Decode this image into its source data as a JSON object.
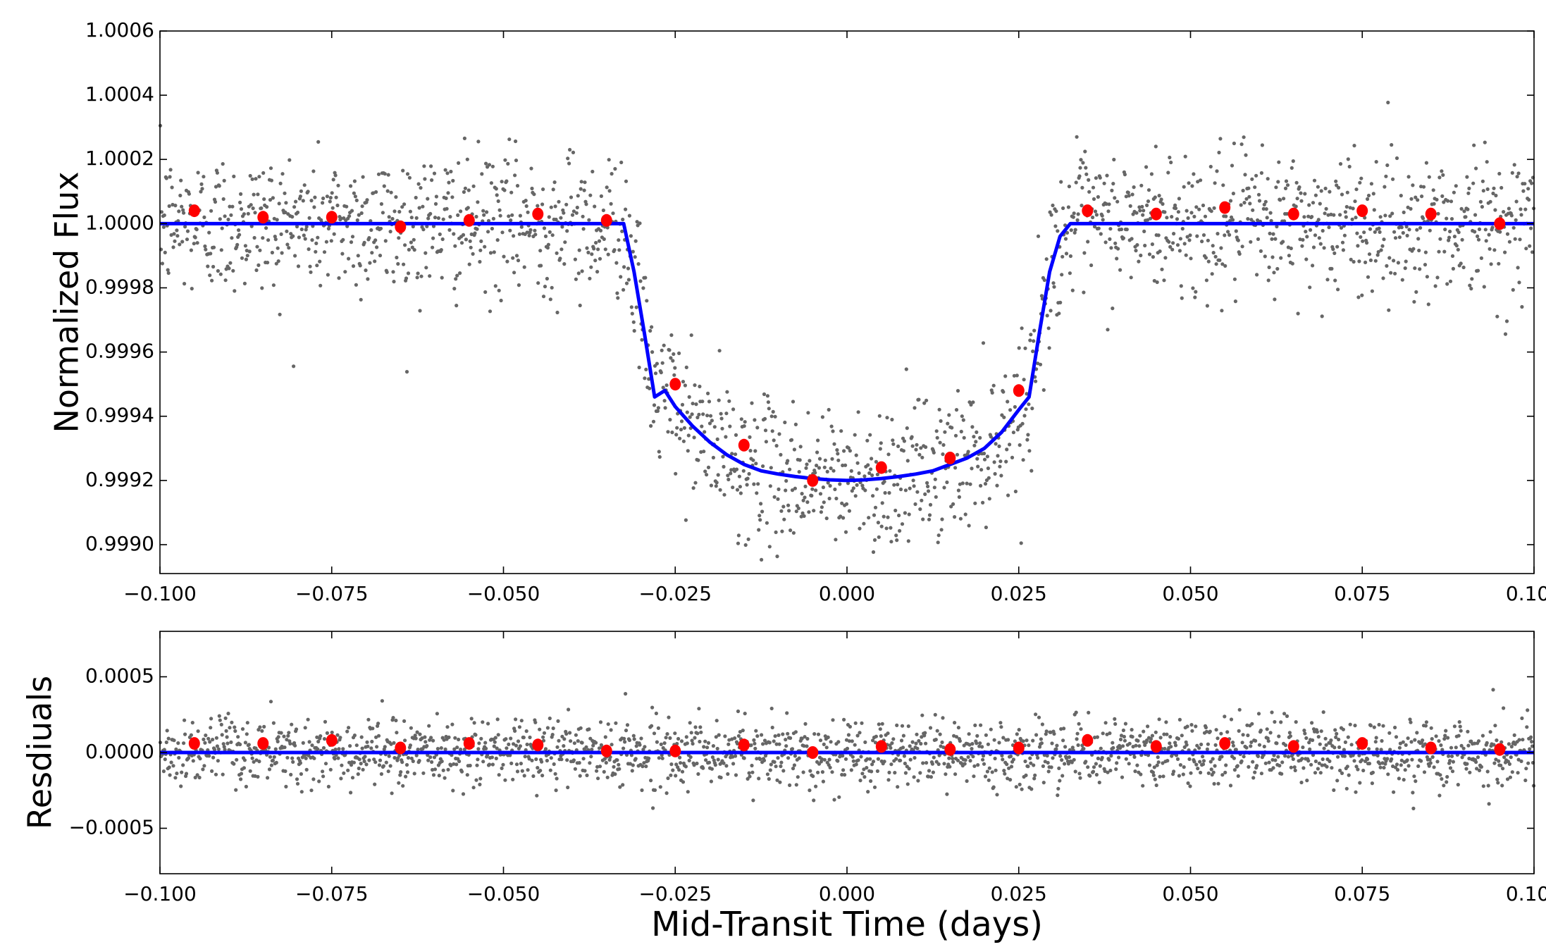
{
  "chart_data": [
    {
      "type": "scatter",
      "title": "",
      "xlabel": "",
      "ylabel": "Normalized Flux",
      "xlim": [
        -0.1,
        0.1
      ],
      "ylim": [
        0.99891,
        1.0006
      ],
      "xticks": [
        -0.1,
        -0.075,
        -0.05,
        -0.025,
        0.0,
        0.025,
        0.05,
        0.075,
        0.1
      ],
      "xtick_labels": [
        "−0.100",
        "−0.075",
        "−0.050",
        "−0.025",
        "0.000",
        "0.025",
        "0.050",
        "0.075",
        "0.100"
      ],
      "yticks": [
        0.999,
        0.9992,
        0.9994,
        0.9996,
        0.9998,
        1.0,
        1.0002,
        1.0004,
        1.0006
      ],
      "ytick_labels": [
        "0.9990",
        "0.9992",
        "0.9994",
        "0.9996",
        "0.9998",
        "1.0000",
        "1.0002",
        "1.0004",
        "1.0006"
      ],
      "grid": false,
      "colors": {
        "raw": "#666666",
        "binned": "#ff0000",
        "model": "#0000ff"
      },
      "binned": {
        "x": [
          -0.095,
          -0.085,
          -0.075,
          -0.065,
          -0.055,
          -0.045,
          -0.035,
          -0.025,
          -0.015,
          -0.005,
          0.005,
          0.015,
          0.025,
          0.035,
          0.045,
          0.055,
          0.065,
          0.075,
          0.085,
          0.095
        ],
        "y": [
          1.00004,
          1.00002,
          1.00002,
          0.99999,
          1.00001,
          1.00003,
          1.00001,
          0.9995,
          0.99931,
          0.9992,
          0.99924,
          0.99927,
          0.99948,
          1.00004,
          1.00003,
          1.00005,
          1.00003,
          1.00004,
          1.00003,
          1.0
        ]
      },
      "model": {
        "x": [
          -0.1,
          -0.0325,
          -0.031,
          -0.0295,
          -0.028,
          -0.0265,
          -0.025,
          -0.0225,
          -0.02,
          -0.0175,
          -0.015,
          -0.0125,
          -0.01,
          -0.0075,
          -0.005,
          -0.0025,
          0.0,
          0.0025,
          0.005,
          0.0075,
          0.01,
          0.0125,
          0.015,
          0.0175,
          0.02,
          0.0225,
          0.025,
          0.0265,
          0.028,
          0.0295,
          0.031,
          0.0325,
          0.1
        ],
        "y": [
          1.0,
          1.0,
          0.99985,
          0.99966,
          0.99946,
          0.99948,
          0.99943,
          0.99937,
          0.99932,
          0.99928,
          0.99925,
          0.99923,
          0.99922,
          0.999212,
          0.999206,
          0.999202,
          0.9992,
          0.999202,
          0.999206,
          0.999212,
          0.99922,
          0.99923,
          0.99925,
          0.99927,
          0.9993,
          0.99935,
          0.99942,
          0.99946,
          0.99966,
          0.99985,
          0.99996,
          1.0,
          1.0
        ]
      },
      "raw_scatter": {
        "count": 2000,
        "sigma": 0.00011,
        "description_only": false
      }
    },
    {
      "type": "scatter",
      "title": "",
      "xlabel": "Mid-Transit Time (days)",
      "ylabel": "Resdiuals",
      "xlim": [
        -0.1,
        0.1
      ],
      "ylim": [
        -0.0008,
        0.0008
      ],
      "xticks": [
        -0.1,
        -0.075,
        -0.05,
        -0.025,
        0.0,
        0.025,
        0.05,
        0.075,
        0.1
      ],
      "xtick_labels": [
        "−0.100",
        "−0.075",
        "−0.050",
        "−0.025",
        "0.000",
        "0.025",
        "0.050",
        "0.075",
        "0.100"
      ],
      "yticks": [
        -0.0005,
        0.0,
        0.0005
      ],
      "ytick_labels": [
        "−0.0005",
        "0.0000",
        "0.0005"
      ],
      "grid": false,
      "colors": {
        "raw": "#666666",
        "binned": "#ff0000",
        "model": "#0000ff"
      },
      "binned": {
        "x": [
          -0.095,
          -0.085,
          -0.075,
          -0.065,
          -0.055,
          -0.045,
          -0.035,
          -0.025,
          -0.015,
          -0.005,
          0.005,
          0.015,
          0.025,
          0.035,
          0.045,
          0.055,
          0.065,
          0.075,
          0.085,
          0.095
        ],
        "y": [
          6e-05,
          6e-05,
          8e-05,
          3e-05,
          6e-05,
          5e-05,
          1e-05,
          1e-05,
          5e-05,
          0.0,
          4e-05,
          2e-05,
          3e-05,
          8e-05,
          4e-05,
          6e-05,
          4e-05,
          6e-05,
          3e-05,
          2e-05
        ]
      },
      "model": {
        "x": [
          -0.1,
          0.1
        ],
        "y": [
          0.0,
          0.0
        ]
      },
      "raw_scatter": {
        "count": 2000,
        "sigma": 0.00011
      }
    }
  ]
}
